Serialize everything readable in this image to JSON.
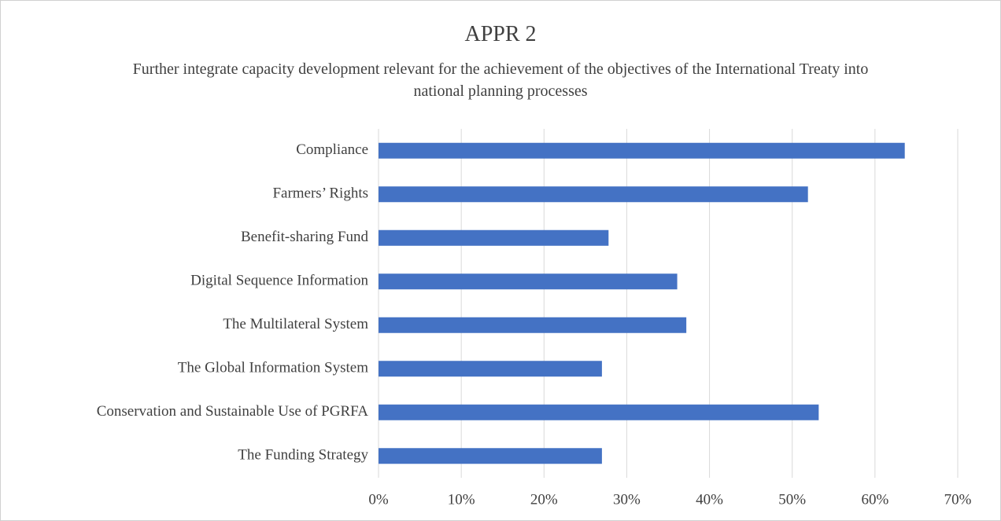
{
  "chart_data": {
    "type": "bar",
    "orientation": "horizontal",
    "title": "APPR 2",
    "subtitle": "Further integrate capacity development relevant for the achievement of the objectives of the International Treaty into national planning processes",
    "categories": [
      "Compliance",
      "Farmers’ Rights",
      "Benefit-sharing Fund",
      "Digital Sequence Information",
      "The Multilateral System",
      "The Global Information System",
      "Conservation and Sustainable Use of PGRFA",
      "The Funding Strategy"
    ],
    "values": [
      63.6,
      51.9,
      27.8,
      36.1,
      37.2,
      27.0,
      53.2,
      27.0
    ],
    "color": "#4472c4",
    "xlim": [
      0,
      70
    ],
    "xticks": [
      {
        "value": 0,
        "label": "0%"
      },
      {
        "value": 10,
        "label": "10%"
      },
      {
        "value": 20,
        "label": "20%"
      },
      {
        "value": 30,
        "label": "30%"
      },
      {
        "value": 40,
        "label": "40%"
      },
      {
        "value": 50,
        "label": "50%"
      },
      {
        "value": 60,
        "label": "60%"
      },
      {
        "value": 70,
        "label": "70%"
      }
    ],
    "grid": true
  }
}
